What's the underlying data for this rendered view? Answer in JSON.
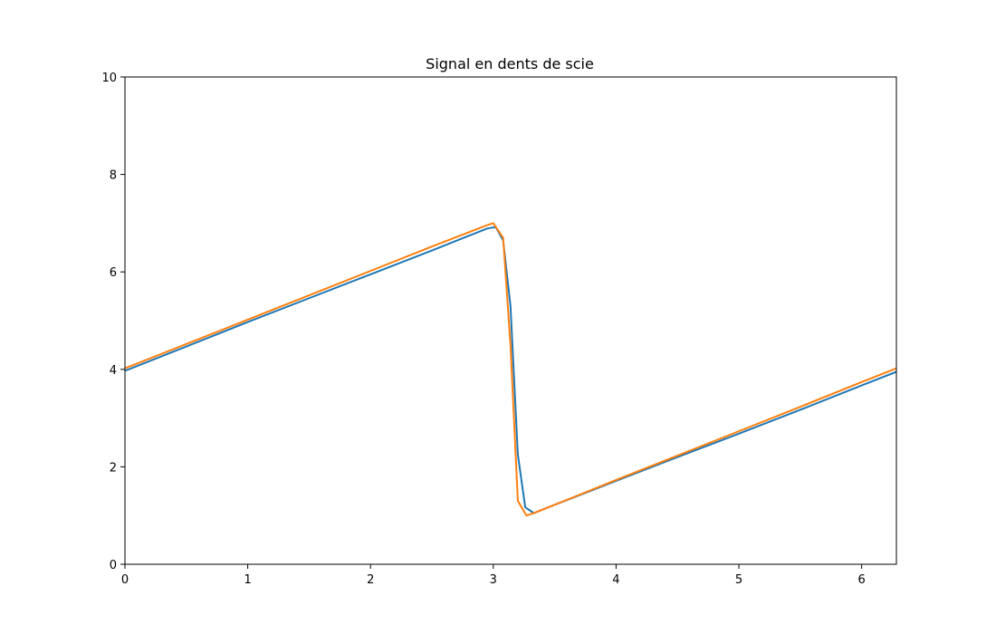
{
  "chart_data": {
    "type": "line",
    "title": "Signal en dents de scie",
    "xlabel": "",
    "ylabel": "",
    "xlim": [
      0,
      6.283
    ],
    "ylim": [
      0,
      10
    ],
    "xticks": [
      0,
      1,
      2,
      3,
      4,
      5,
      6
    ],
    "xtick_labels": [
      "0",
      "1",
      "2",
      "3",
      "4",
      "5",
      "6"
    ],
    "yticks": [
      0,
      2,
      4,
      6,
      8,
      10
    ],
    "ytick_labels": [
      "0",
      "2",
      "4",
      "6",
      "8",
      "10"
    ],
    "grid": false,
    "legend": "none",
    "series": [
      {
        "color": "#1f77b4",
        "x": [
          0,
          0.5,
          1.0,
          1.5,
          2.0,
          2.5,
          2.95,
          3.02,
          3.08,
          3.14,
          3.2,
          3.26,
          3.33,
          3.5,
          4.0,
          4.5,
          5.0,
          5.5,
          6.0,
          6.283
        ],
        "y": [
          3.97,
          4.47,
          4.97,
          5.46,
          5.95,
          6.44,
          6.89,
          6.92,
          6.65,
          5.3,
          2.25,
          1.17,
          1.05,
          1.22,
          1.71,
          2.2,
          2.68,
          3.17,
          3.67,
          3.95
        ]
      },
      {
        "color": "#ff7f0e",
        "x": [
          0,
          0.5,
          1.0,
          1.5,
          2.0,
          2.5,
          2.95,
          3.0,
          3.08,
          3.14,
          3.2,
          3.27,
          3.33,
          3.5,
          4.0,
          4.5,
          5.0,
          5.5,
          6.0,
          6.283
        ],
        "y": [
          4.02,
          4.52,
          5.02,
          5.52,
          6.02,
          6.52,
          6.96,
          7.0,
          6.7,
          4.5,
          1.3,
          1.0,
          1.05,
          1.22,
          1.73,
          2.23,
          2.73,
          3.23,
          3.74,
          4.02
        ]
      }
    ]
  }
}
